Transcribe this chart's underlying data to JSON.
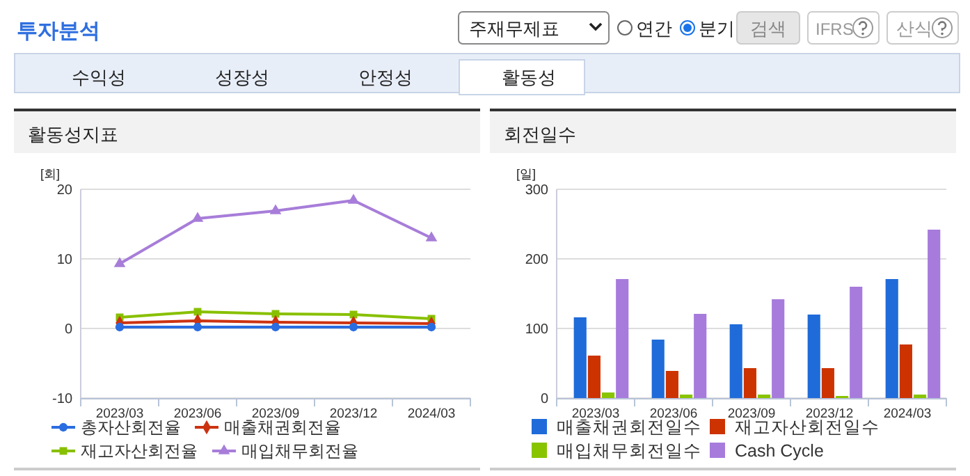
{
  "chart_data": [
    {
      "type": "other",
      "title": "투자분석",
      "annotations": [
        "주재무제표",
        "연간",
        "분기",
        "검색",
        "IFRS",
        "산식",
        "수익성",
        "성장성",
        "안정성",
        "활동성"
      ]
    },
    {
      "type": "line",
      "title": "활동성지표",
      "ylabel": "[회]",
      "categories": [
        "2023/03",
        "2023/06",
        "2023/09",
        "2023/12",
        "2024/03"
      ],
      "ylim": [
        -10,
        20
      ],
      "yticks": [
        -10,
        0,
        10,
        20
      ],
      "grid": "y",
      "legend": "bottom",
      "series": [
        {
          "name": "총자산회전율",
          "color": "#2a6de0",
          "marker": "circle",
          "values": [
            0.2,
            0.2,
            0.2,
            0.2,
            0.2
          ]
        },
        {
          "name": "매출채권회전율",
          "color": "#cc3311",
          "marker": "diamond",
          "values": [
            0.8,
            1.1,
            0.9,
            0.8,
            0.7
          ]
        },
        {
          "name": "재고자산회전율",
          "color": "#88c000",
          "marker": "square",
          "values": [
            1.6,
            2.4,
            2.1,
            2.0,
            1.4
          ]
        },
        {
          "name": "매입채무회전율",
          "color": "#a77dd9",
          "marker": "triangle",
          "values": [
            9.3,
            15.8,
            16.9,
            18.4,
            13.0
          ]
        }
      ]
    },
    {
      "type": "bar",
      "title": "회전일수",
      "ylabel": "[일]",
      "categories": [
        "2023/03",
        "2023/06",
        "2023/09",
        "2023/12",
        "2024/03"
      ],
      "ylim": [
        0,
        300
      ],
      "yticks": [
        0,
        100,
        200,
        300
      ],
      "grid": "y",
      "legend": "bottom",
      "series": [
        {
          "name": "매출채권회전일수",
          "color": "#1f6bd9",
          "values": [
            116,
            84,
            106,
            120,
            171
          ]
        },
        {
          "name": "재고자산회전일수",
          "color": "#cc3300",
          "values": [
            61,
            39,
            43,
            43,
            77
          ]
        },
        {
          "name": "매입채무회전일수",
          "color": "#88c400",
          "values": [
            8,
            5,
            5,
            3,
            5
          ]
        },
        {
          "name": "Cash Cycle",
          "color": "#a77bdc",
          "values": [
            171,
            121,
            142,
            160,
            242
          ]
        }
      ]
    }
  ]
}
